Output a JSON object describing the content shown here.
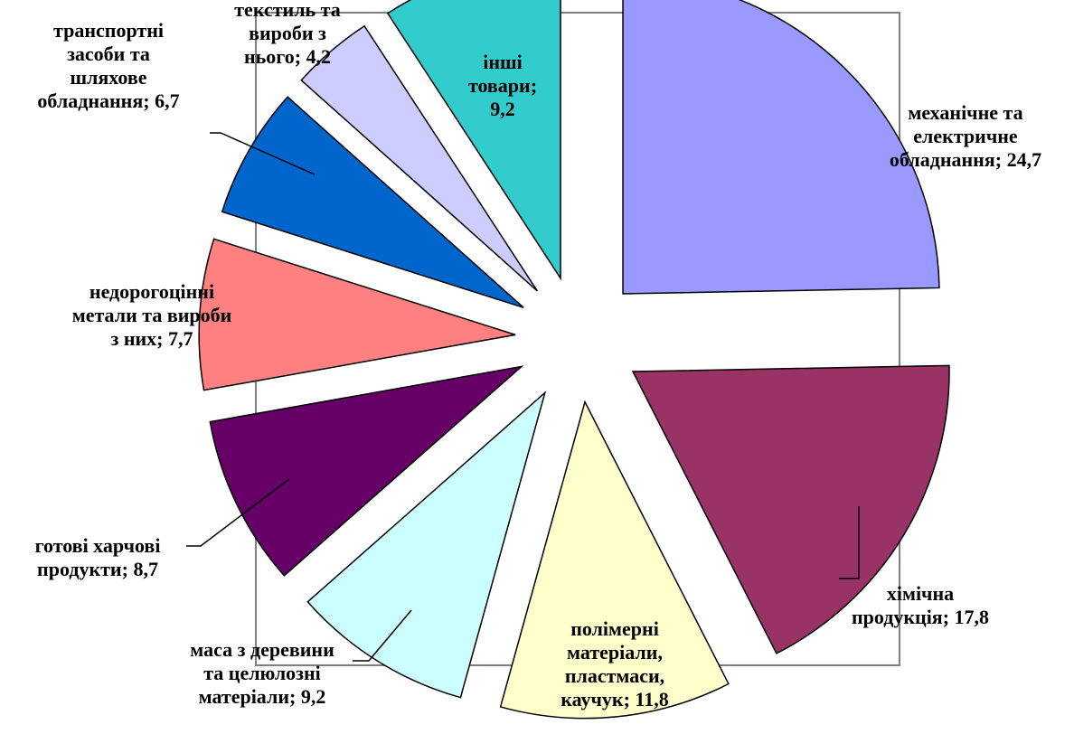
{
  "chart_data": {
    "type": "pie",
    "exploded": true,
    "data_label_separator": "; ",
    "slices": [
      {
        "label": "механічне та електричне обладнання",
        "value": 24.7,
        "value_label": "24,7",
        "color": "#9999FF"
      },
      {
        "label": "хімічна продукція",
        "value": 17.8,
        "value_label": "17,8",
        "color": "#993366"
      },
      {
        "label": "полімерні матеріали, пластмаси, каучук",
        "value": 11.8,
        "value_label": "11,8",
        "color": "#FFFFCC"
      },
      {
        "label": "маса з деревини та целюлозні матеріали",
        "value": 9.2,
        "value_label": "9,2",
        "color": "#CCFFFF"
      },
      {
        "label": "готові харчові продукти",
        "value": 8.7,
        "value_label": "8,7",
        "color": "#660066"
      },
      {
        "label": "недорогоцінні метали та вироби з них",
        "value": 7.7,
        "value_label": "7,7",
        "color": "#FF8080"
      },
      {
        "label": "транспортні засоби та шляхове обладнання",
        "value": 6.7,
        "value_label": "6,7",
        "color": "#0066CC"
      },
      {
        "label": "текстиль та вироби з нього",
        "value": 4.2,
        "value_label": "4,2",
        "color": "#CCCCFF"
      },
      {
        "label": "інші товари",
        "value": 9.2,
        "value_label": "9,2",
        "color": "#33CCCC"
      }
    ]
  }
}
